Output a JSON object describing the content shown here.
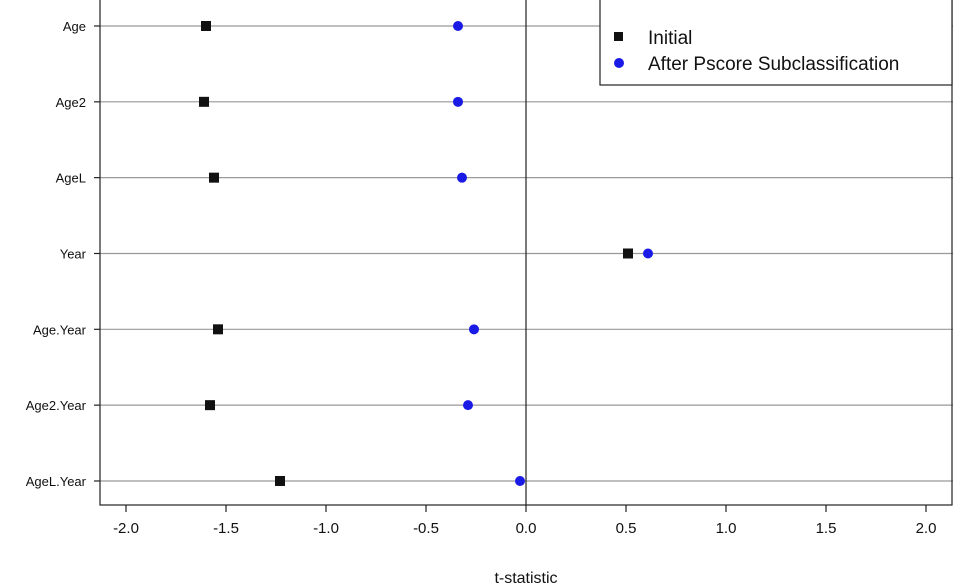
{
  "chart_data": {
    "type": "scatter",
    "xlabel": "t-statistic",
    "xlim": [
      -2.1,
      2.1
    ],
    "xticks": [
      "-2.0",
      "-1.5",
      "-1.0",
      "-0.5",
      "0.0",
      "0.5",
      "1.0",
      "1.5",
      "2.0"
    ],
    "xtick_values": [
      -2.0,
      -1.5,
      -1.0,
      -0.5,
      0.0,
      0.5,
      1.0,
      1.5,
      2.0
    ],
    "categories": [
      "Age",
      "Age2",
      "AgeL",
      "Year",
      "Age.Year",
      "Age2.Year",
      "AgeL.Year"
    ],
    "reference_line_x": 0,
    "grid": "horizontal lines per category",
    "legend_position": "top-right",
    "series": [
      {
        "name": "Initial",
        "marker": "square",
        "color": "#111111",
        "values": [
          -1.6,
          -1.61,
          -1.56,
          0.51,
          -1.54,
          -1.58,
          -1.23
        ]
      },
      {
        "name": "After Pscore Subclassification",
        "marker": "circle",
        "color": "#1a1ae6",
        "values": [
          -0.34,
          -0.34,
          -0.32,
          0.61,
          -0.26,
          -0.29,
          -0.03
        ]
      }
    ]
  }
}
